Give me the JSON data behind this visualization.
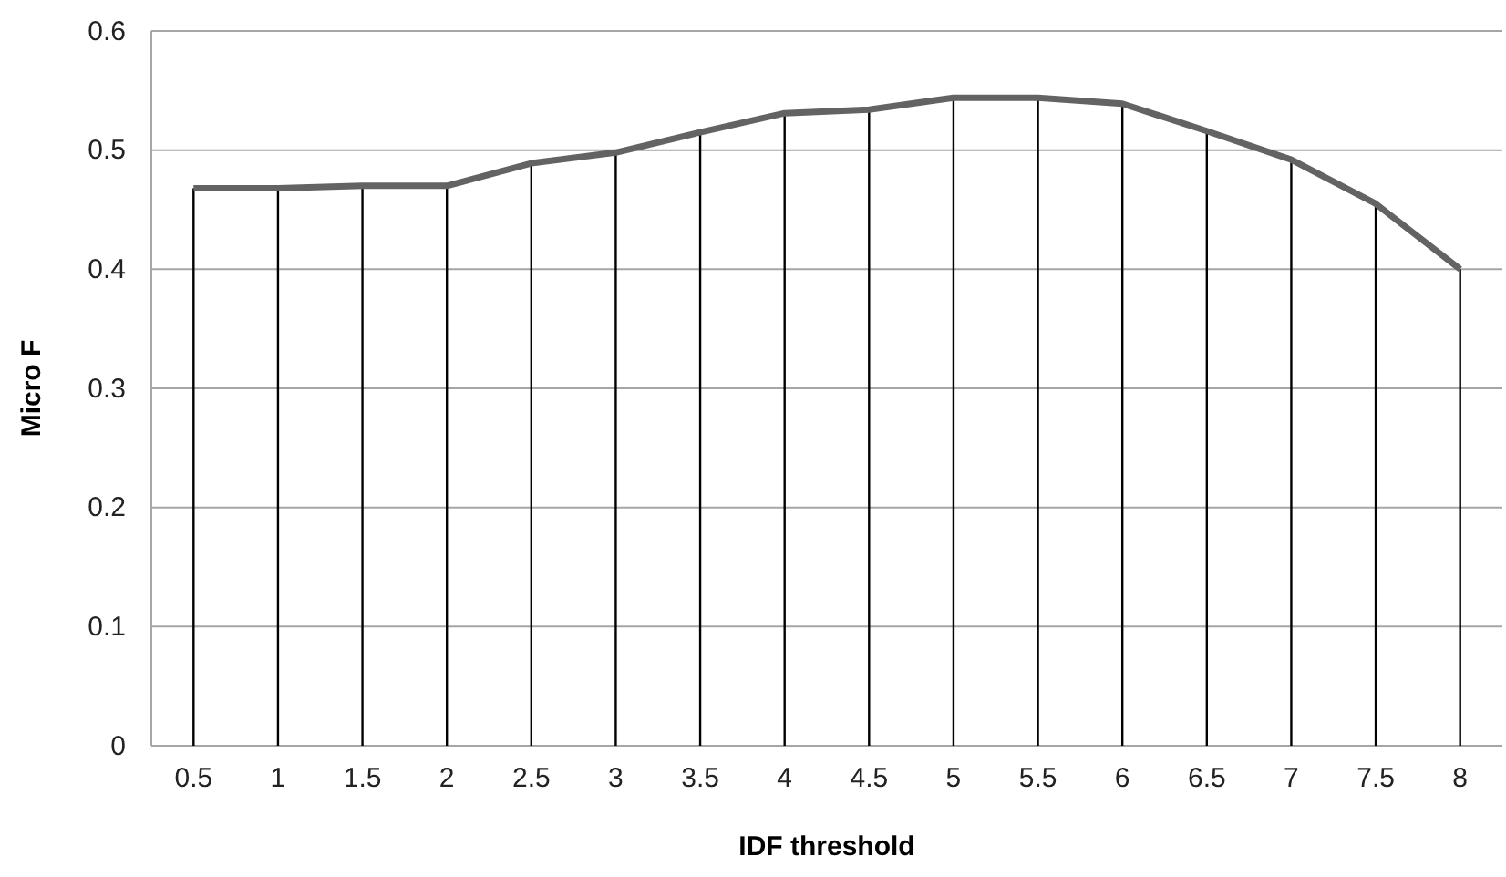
{
  "chart_data": {
    "type": "line",
    "xlabel": "IDF threshold",
    "ylabel": "Micro F",
    "categories": [
      "0.5",
      "1",
      "1.5",
      "2",
      "2.5",
      "3",
      "3.5",
      "4",
      "4.5",
      "5",
      "5.5",
      "6",
      "6.5",
      "7",
      "7.5",
      "8"
    ],
    "series": [
      {
        "type": "bar",
        "color": "#000000",
        "values": [
          0.468,
          0.468,
          0.47,
          0.47,
          0.489,
          0.498,
          0.515,
          0.531,
          0.534,
          0.544,
          0.544,
          0.539,
          0.516,
          0.492,
          0.455,
          0.4
        ]
      },
      {
        "color": "#636363",
        "values": [
          0.468,
          0.468,
          0.47,
          0.47,
          0.489,
          0.498,
          0.515,
          0.531,
          0.534,
          0.544,
          0.544,
          0.539,
          0.516,
          0.492,
          0.455,
          0.4
        ]
      }
    ],
    "ylim": [
      0,
      0.6
    ],
    "yticks": [
      0,
      0.1,
      0.2,
      0.3,
      0.4,
      0.5,
      0.6
    ],
    "grid": "y",
    "marker": "none",
    "line_style": "solid"
  }
}
